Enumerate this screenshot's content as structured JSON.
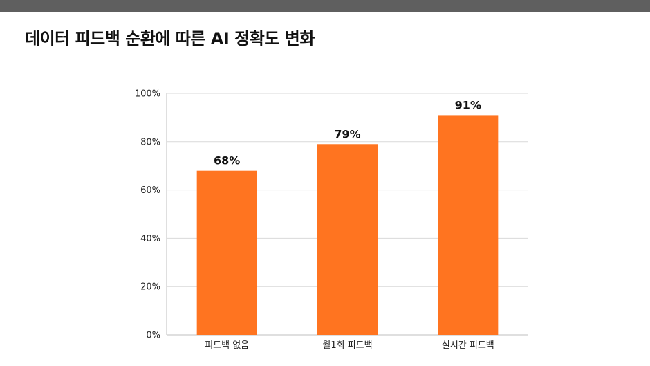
{
  "slide": {
    "title": "데이터 피드백 순환에 따른 AI 정확도 변화"
  },
  "colors": {
    "top_bar": "#5f5f5f",
    "bar": "#ff7420",
    "gridline": "#d9d9d9",
    "axis": "#bfbfbf"
  },
  "chart_data": {
    "type": "bar",
    "title": "",
    "xlabel": "",
    "ylabel": "",
    "categories": [
      "피드백 없음",
      "월1회 피드백",
      "실시간 피드백"
    ],
    "values": [
      68,
      79,
      91
    ],
    "data_labels": [
      "68%",
      "79%",
      "91%"
    ],
    "ylim": [
      0,
      100
    ],
    "yticks": [
      0,
      20,
      40,
      60,
      80,
      100
    ],
    "ytick_labels": [
      "0%",
      "20%",
      "40%",
      "60%",
      "80%",
      "100%"
    ],
    "grid": true,
    "legend": "none"
  }
}
